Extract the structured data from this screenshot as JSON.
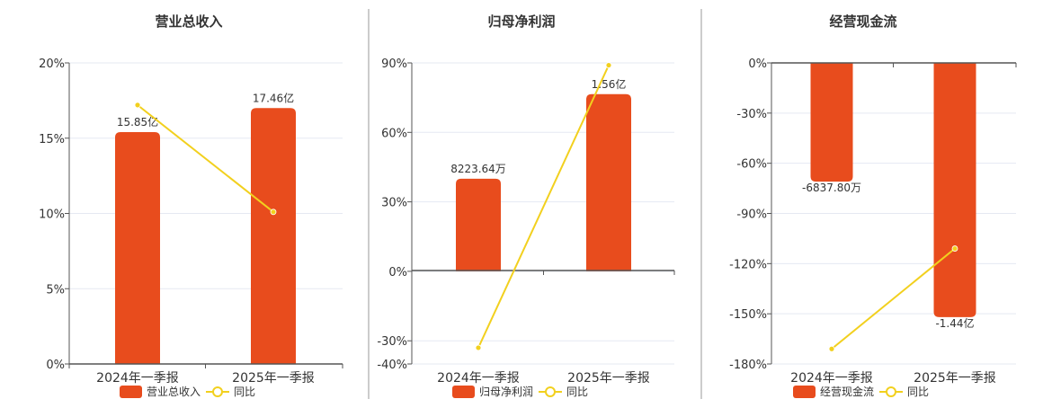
{
  "colors": {
    "bar": "#E84C1D",
    "line": "#F2D01E",
    "grid": "#E5E9F2",
    "axis": "#555555",
    "divider": "#9A9A9A",
    "text": "#333333"
  },
  "chart_data": [
    {
      "type": "bar+line",
      "title": "营业总收入",
      "categories": [
        "2024年一季报",
        "2025年一季报"
      ],
      "yaxis": {
        "ticks": [
          "20%",
          "15%",
          "10%",
          "5%",
          "0%"
        ],
        "ylim": [
          0,
          20
        ]
      },
      "series": [
        {
          "name": "营业总收入",
          "type": "bar",
          "labels": [
            "15.85亿",
            "17.46亿"
          ],
          "values_on_axis": [
            15.4,
            17.0
          ]
        },
        {
          "name": "同比",
          "type": "line",
          "values_on_axis": [
            17.2,
            10.1
          ]
        }
      ],
      "legend": {
        "position": "bottom",
        "items": [
          "营业总收入",
          "同比"
        ]
      }
    },
    {
      "type": "bar+line",
      "title": "归母净利润",
      "categories": [
        "2024年一季报",
        "2025年一季报"
      ],
      "yaxis": {
        "ticks": [
          "90%",
          "60%",
          "30%",
          "0%",
          "-30%",
          "-40%"
        ],
        "ylim": [
          -40,
          90
        ]
      },
      "series": [
        {
          "name": "归母净利润",
          "type": "bar",
          "labels": [
            "8223.64万",
            "1.56亿"
          ],
          "values_on_axis": [
            40,
            76.5
          ]
        },
        {
          "name": "同比",
          "type": "line",
          "values_on_axis": [
            -33,
            89
          ]
        }
      ],
      "legend": {
        "position": "bottom",
        "items": [
          "归母净利润",
          "同比"
        ]
      }
    },
    {
      "type": "bar+line",
      "title": "经营现金流",
      "categories": [
        "2024年一季报",
        "2025年一季报"
      ],
      "yaxis": {
        "ticks": [
          "0%",
          "-30%",
          "-60%",
          "-90%",
          "-120%",
          "-150%",
          "-180%"
        ],
        "ylim": [
          -180,
          0
        ]
      },
      "series": [
        {
          "name": "经营现金流",
          "type": "bar",
          "labels": [
            "-6837.80万",
            "-1.44亿"
          ],
          "values_on_axis": [
            -71,
            -152
          ]
        },
        {
          "name": "同比",
          "type": "line",
          "values_on_axis": [
            -171,
            -111
          ]
        }
      ],
      "legend": {
        "position": "bottom",
        "items": [
          "经营现金流",
          "同比"
        ]
      }
    }
  ]
}
